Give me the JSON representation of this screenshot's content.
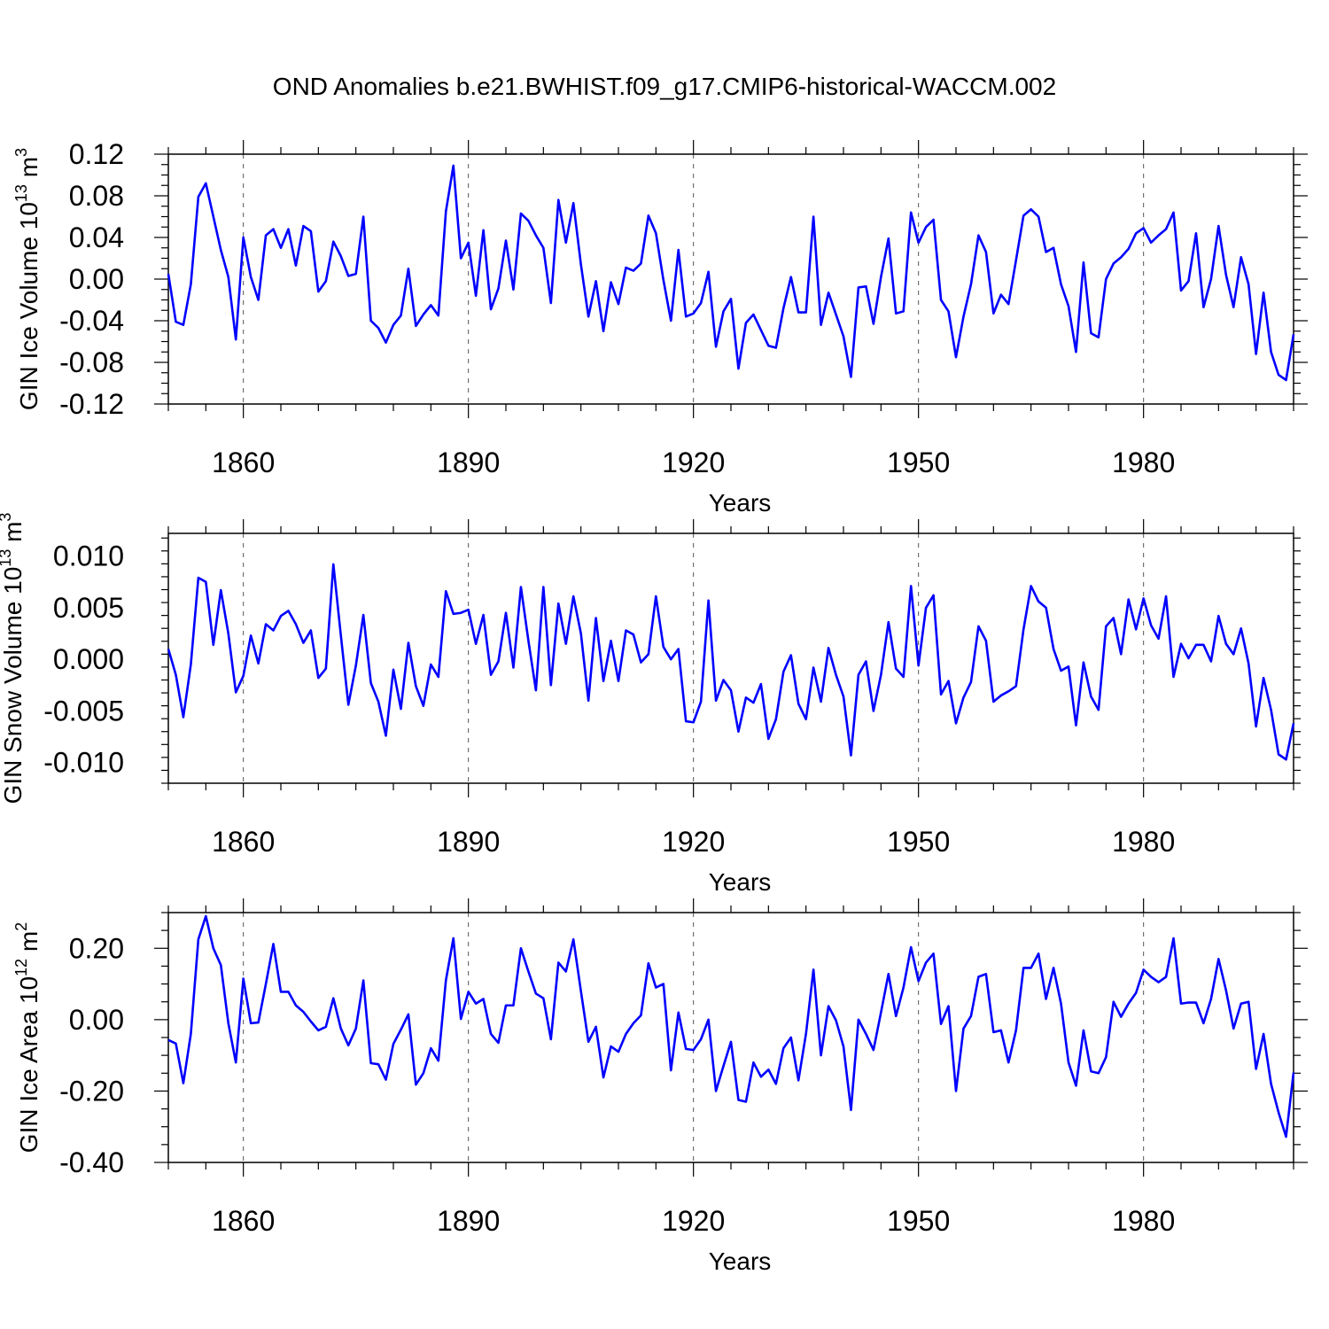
{
  "title": "OND Anomalies b.e21.BWHIST.f09_g17.CMIP6-historical-WACCM.002",
  "colors": {
    "line": "#0000ff",
    "axis": "#000000",
    "grid": "#555555"
  },
  "chart_data": [
    {
      "type": "line",
      "ylabel": "GIN Ice Volume 10",
      "ylabel_exp": "13",
      "ylabel_unit": " m",
      "ylabel_unit_exp": "3",
      "xlabel": "Years",
      "xlim": [
        1850,
        2000
      ],
      "ylim": [
        -0.12,
        0.12
      ],
      "yticks": [
        -0.12,
        -0.08,
        -0.04,
        0.0,
        0.04,
        0.08,
        0.12
      ],
      "ytick_labels": [
        "-0.12",
        "-0.08",
        "-0.04",
        "0.00",
        "0.04",
        "0.08",
        "0.12"
      ],
      "xticks": [
        1860,
        1890,
        1920,
        1950,
        1980
      ],
      "xtick_labels": [
        "1860",
        "1890",
        "1920",
        "1950",
        "1980"
      ],
      "x_start": 1850,
      "values": [
        0.005,
        -0.041,
        -0.044,
        -0.005,
        0.079,
        0.092,
        0.06,
        0.028,
        0.002,
        -0.058,
        0.04,
        0.002,
        -0.02,
        0.042,
        0.048,
        0.03,
        0.048,
        0.013,
        0.051,
        0.046,
        -0.012,
        -0.002,
        0.036,
        0.022,
        0.003,
        0.005,
        0.06,
        -0.04,
        -0.047,
        -0.061,
        -0.044,
        -0.035,
        0.01,
        -0.045,
        -0.034,
        -0.025,
        -0.035,
        0.065,
        0.109,
        0.02,
        0.035,
        -0.016,
        0.047,
        -0.029,
        -0.009,
        0.037,
        -0.01,
        0.063,
        0.056,
        0.042,
        0.03,
        -0.023,
        0.076,
        0.035,
        0.073,
        0.014,
        -0.036,
        -0.002,
        -0.05,
        -0.003,
        -0.024,
        0.011,
        0.008,
        0.015,
        0.061,
        0.044,
        -0.001,
        -0.04,
        0.028,
        -0.036,
        -0.033,
        -0.023,
        0.007,
        -0.065,
        -0.031,
        -0.019,
        -0.086,
        -0.042,
        -0.034,
        -0.049,
        -0.064,
        -0.066,
        -0.028,
        0.002,
        -0.032,
        -0.032,
        0.06,
        -0.044,
        -0.013,
        -0.034,
        -0.055,
        -0.094,
        -0.008,
        -0.007,
        -0.043,
        0.002,
        0.039,
        -0.033,
        -0.031,
        0.064,
        0.035,
        0.05,
        0.057,
        -0.02,
        -0.031,
        -0.075,
        -0.036,
        -0.005,
        0.042,
        0.026,
        -0.033,
        -0.015,
        -0.024,
        0.018,
        0.061,
        0.067,
        0.06,
        0.026,
        0.03,
        -0.005,
        -0.026,
        -0.07,
        0.016,
        -0.052,
        -0.056,
        0.0,
        0.015,
        0.021,
        0.029,
        0.044,
        0.049,
        0.035,
        0.042,
        0.048,
        0.064,
        -0.011,
        -0.002,
        0.044,
        -0.027,
        0.0,
        0.051,
        0.004,
        -0.027,
        0.021,
        -0.005,
        -0.072,
        -0.013,
        -0.07,
        -0.092,
        -0.097,
        -0.053
      ]
    },
    {
      "type": "line",
      "ylabel": "GIN Snow Volume 10",
      "ylabel_exp": "13",
      "ylabel_unit": " m",
      "ylabel_unit_exp": "3",
      "xlabel": "Years",
      "xlim": [
        1850,
        2000
      ],
      "ylim": [
        -0.012,
        0.0122
      ],
      "yticks": [
        -0.01,
        -0.005,
        0.0,
        0.005,
        0.01
      ],
      "ytick_labels": [
        "-0.010",
        "-0.005",
        "0.000",
        "0.005",
        "0.010"
      ],
      "xticks": [
        1860,
        1890,
        1920,
        1950,
        1980
      ],
      "xtick_labels": [
        "1860",
        "1890",
        "1920",
        "1950",
        "1980"
      ],
      "x_start": 1850,
      "values": [
        0.001,
        -0.0015,
        -0.0056,
        -0.0005,
        0.0079,
        0.0075,
        0.0014,
        0.0067,
        0.0025,
        -0.0032,
        -0.0016,
        0.0023,
        -0.0004,
        0.0034,
        0.0028,
        0.0042,
        0.0047,
        0.0034,
        0.0016,
        0.0028,
        -0.0018,
        -0.0009,
        0.0092,
        0.0023,
        -0.0044,
        -0.0006,
        0.0043,
        -0.0023,
        -0.0041,
        -0.0074,
        -0.001,
        -0.0048,
        0.0016,
        -0.0026,
        -0.0045,
        -0.0005,
        -0.0017,
        0.0066,
        0.0044,
        0.0045,
        0.0048,
        0.0015,
        0.0043,
        -0.0015,
        -0.0002,
        0.0045,
        -0.0008,
        0.007,
        0.0018,
        -0.003,
        0.007,
        -0.0025,
        0.0054,
        0.0015,
        0.0061,
        0.0025,
        -0.004,
        0.004,
        -0.0021,
        0.0018,
        -0.0021,
        0.0028,
        0.0024,
        -0.0003,
        0.0005,
        0.0061,
        0.0012,
        0.0,
        0.001,
        -0.006,
        -0.0061,
        -0.0041,
        0.0057,
        -0.004,
        -0.002,
        -0.003,
        -0.007,
        -0.0037,
        -0.0042,
        -0.0024,
        -0.0077,
        -0.0058,
        -0.0012,
        0.0004,
        -0.0043,
        -0.0058,
        -0.0008,
        -0.0041,
        0.0011,
        -0.0015,
        -0.0036,
        -0.0093,
        -0.0015,
        -0.0002,
        -0.005,
        -0.0015,
        0.0036,
        -0.0009,
        -0.0017,
        0.0071,
        -0.0006,
        0.005,
        0.0062,
        -0.0034,
        -0.0021,
        -0.0062,
        -0.0037,
        -0.0022,
        0.0032,
        0.0018,
        -0.0041,
        -0.0035,
        -0.0031,
        -0.0026,
        0.0029,
        0.0071,
        0.0056,
        0.005,
        0.001,
        -0.0011,
        -0.0007,
        -0.0064,
        -0.0003,
        -0.0036,
        -0.0049,
        0.0032,
        0.004,
        0.0005,
        0.0058,
        0.0029,
        0.0059,
        0.0033,
        0.002,
        0.0061,
        -0.0017,
        0.0015,
        0.0001,
        0.0014,
        0.0014,
        -0.0002,
        0.0042,
        0.0015,
        0.0005,
        0.003,
        -0.0004,
        -0.0065,
        -0.0018,
        -0.0049,
        -0.0092,
        -0.0097,
        -0.0062
      ]
    },
    {
      "type": "line",
      "ylabel": "GIN Ice Area 10",
      "ylabel_exp": "12",
      "ylabel_unit": " m",
      "ylabel_unit_exp": "2",
      "xlabel": "Years",
      "xlim": [
        1850,
        2000
      ],
      "ylim": [
        -0.4,
        0.3
      ],
      "yticks": [
        -0.4,
        -0.2,
        0.0,
        0.2
      ],
      "ytick_labels": [
        "-0.40",
        "-0.20",
        "0.00",
        "0.20"
      ],
      "xticks": [
        1860,
        1890,
        1920,
        1950,
        1980
      ],
      "xtick_labels": [
        "1860",
        "1890",
        "1920",
        "1950",
        "1980"
      ],
      "x_start": 1850,
      "values": [
        -0.057,
        -0.067,
        -0.178,
        -0.04,
        0.225,
        0.29,
        0.2,
        0.153,
        -0.01,
        -0.12,
        0.115,
        -0.01,
        -0.008,
        0.1,
        0.212,
        0.078,
        0.078,
        0.04,
        0.022,
        -0.005,
        -0.03,
        -0.02,
        0.06,
        -0.025,
        -0.072,
        -0.025,
        0.11,
        -0.122,
        -0.125,
        -0.168,
        -0.068,
        -0.028,
        0.015,
        -0.182,
        -0.15,
        -0.08,
        -0.115,
        0.11,
        0.228,
        0.002,
        0.078,
        0.045,
        0.058,
        -0.04,
        -0.065,
        0.04,
        0.04,
        0.2,
        0.135,
        0.073,
        0.06,
        -0.055,
        0.16,
        0.135,
        0.225,
        0.08,
        -0.062,
        -0.02,
        -0.162,
        -0.075,
        -0.09,
        -0.04,
        -0.01,
        0.012,
        0.158,
        0.09,
        0.1,
        -0.142,
        0.02,
        -0.082,
        -0.085,
        -0.055,
        0.0,
        -0.2,
        -0.13,
        -0.062,
        -0.225,
        -0.23,
        -0.12,
        -0.16,
        -0.14,
        -0.18,
        -0.08,
        -0.05,
        -0.17,
        -0.04,
        0.14,
        -0.1,
        0.038,
        -0.002,
        -0.075,
        -0.253,
        0.0,
        -0.04,
        -0.085,
        0.02,
        0.128,
        0.01,
        0.09,
        0.203,
        0.108,
        0.16,
        0.185,
        -0.012,
        0.038,
        -0.2,
        -0.025,
        0.01,
        0.12,
        0.128,
        -0.035,
        -0.03,
        -0.12,
        -0.03,
        0.145,
        0.145,
        0.185,
        0.058,
        0.145,
        0.045,
        -0.12,
        -0.185,
        -0.03,
        -0.145,
        -0.15,
        -0.105,
        0.05,
        0.008,
        0.045,
        0.075,
        0.14,
        0.12,
        0.105,
        0.12,
        0.228,
        0.045,
        0.048,
        0.048,
        -0.01,
        0.058,
        0.17,
        0.082,
        -0.025,
        0.045,
        0.05,
        -0.138,
        -0.04,
        -0.18,
        -0.26,
        -0.328,
        -0.148
      ]
    }
  ]
}
